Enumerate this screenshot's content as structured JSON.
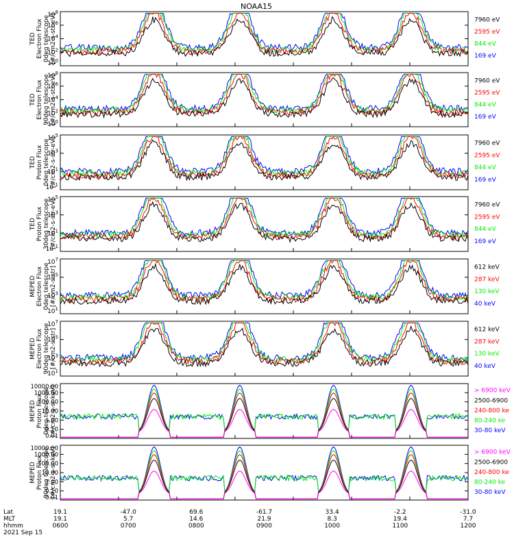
{
  "title": "NOAA15",
  "colors": {
    "blue": "#0000ff",
    "red": "#ff0000",
    "green": "#00ee00",
    "black": "#000000",
    "magenta": "#ff00ff"
  },
  "footer": {
    "row_labels": [
      "Lat",
      "MLT",
      "hhmm"
    ],
    "date": "2021 Sep 15",
    "lat": [
      "19.1",
      "-47.0",
      "69.6",
      "-61.7",
      "33.4",
      "-2.2",
      "-31.0"
    ],
    "mlt": [
      "19.1",
      "5.7",
      "14.6",
      "21.9",
      "8.3",
      "19.4",
      "7.7"
    ],
    "hhmm": [
      "0600",
      "0700",
      "0800",
      "0900",
      "1000",
      "1100",
      "1200"
    ]
  },
  "chart_data": [
    {
      "type": "line",
      "scale": "log",
      "ylim": [
        1,
        100000000
      ],
      "tick_labels": [
        "10^0",
        "10^2",
        "10^4",
        "10^6",
        "10^8"
      ],
      "ylabel": [
        "TED",
        "Electron Flux",
        "0deg telescope",
        "[#/cm2-s-str-eV]"
      ],
      "legend": [
        {
          "label": "7960 eV",
          "color": "black"
        },
        {
          "label": "2595 eV",
          "color": "red"
        },
        {
          "label": "844 eV",
          "color": "green"
        },
        {
          "label": "169 eV",
          "color": "blue"
        }
      ]
    },
    {
      "type": "line",
      "scale": "log",
      "ylim": [
        1,
        100000000
      ],
      "tick_labels": [
        "10^0",
        "10^2",
        "10^4",
        "10^6",
        "10^8"
      ],
      "ylabel": [
        "TED",
        "Electron Flux",
        "90deg telescope",
        "[#/cm2-s-str-eV]"
      ],
      "legend": [
        {
          "label": "7960 eV",
          "color": "black"
        },
        {
          "label": "2595 eV",
          "color": "red"
        },
        {
          "label": "844 eV",
          "color": "green"
        },
        {
          "label": "169 eV",
          "color": "blue"
        }
      ]
    },
    {
      "type": "line",
      "scale": "log",
      "ylim": [
        0.1,
        100000
      ],
      "tick_labels": [
        "10^-1",
        "10^1",
        "10^3",
        "10^5"
      ],
      "ylabel": [
        "TED",
        "Proton Flux",
        "0deg telescope",
        "[#/cm2-s-str-eV]"
      ],
      "legend": [
        {
          "label": "7960 eV",
          "color": "black"
        },
        {
          "label": "2595 eV",
          "color": "red"
        },
        {
          "label": "844 eV",
          "color": "green"
        },
        {
          "label": "169 eV",
          "color": "blue"
        }
      ]
    },
    {
      "type": "line",
      "scale": "log",
      "ylim": [
        0.1,
        100000
      ],
      "tick_labels": [
        "10^-1",
        "10^1",
        "10^3",
        "10^5"
      ],
      "ylabel": [
        "TED",
        "Proton Flux",
        "30deg telescope",
        "[#/cm2-s-str-eV]"
      ],
      "legend": [
        {
          "label": "7960 eV",
          "color": "black"
        },
        {
          "label": "2595 eV",
          "color": "red"
        },
        {
          "label": "844 eV",
          "color": "green"
        },
        {
          "label": "169 eV",
          "color": "blue"
        }
      ]
    },
    {
      "type": "line",
      "scale": "log",
      "ylim": [
        10,
        10000000
      ],
      "tick_labels": [
        "10^1",
        "10^3",
        "10^5",
        "10^7"
      ],
      "ylabel": [
        "MEPED",
        "Electron Flux",
        "0deg telescope",
        "[#/cm2-s-str]"
      ],
      "legend": [
        {
          "label": "612 keV",
          "color": "black"
        },
        {
          "label": "287 keV",
          "color": "red"
        },
        {
          "label": "130 keV",
          "color": "green"
        },
        {
          "label": "40 keV",
          "color": "blue"
        }
      ]
    },
    {
      "type": "line",
      "scale": "log",
      "ylim": [
        10,
        10000000
      ],
      "tick_labels": [
        "10^1",
        "10^3",
        "10^5",
        "10^7"
      ],
      "ylabel": [
        "MEPED",
        "Electron Flux",
        "90deg telescope",
        "[#/cm2-s-str]"
      ],
      "legend": [
        {
          "label": "612 keV",
          "color": "black"
        },
        {
          "label": "287 keV",
          "color": "red"
        },
        {
          "label": "130 keV",
          "color": "green"
        },
        {
          "label": "40 keV",
          "color": "blue"
        }
      ]
    },
    {
      "type": "line",
      "scale": "log",
      "ylim": [
        0.01,
        10000
      ],
      "tick_labels": [
        "0.01",
        "0.10",
        "1.00",
        "10.00",
        "100.00",
        "1000.00",
        "10000.00"
      ],
      "ylabel": [
        "MEPED",
        "Proton Flux",
        "0deg telescope",
        "[#/cm2-s-sr-keV]"
      ],
      "legend": [
        {
          "label": "> 6900 keV",
          "color": "magenta"
        },
        {
          "label": "2500-6900",
          "color": "black"
        },
        {
          "label": "240-800 ke",
          "color": "red"
        },
        {
          "label": "80-240 ke",
          "color": "green"
        },
        {
          "label": "30-80 keV",
          "color": "blue"
        }
      ]
    },
    {
      "type": "line",
      "scale": "log",
      "ylim": [
        0.01,
        10000
      ],
      "tick_labels": [
        "0.01",
        "0.10",
        "1.00",
        "10.00",
        "100.00",
        "1000.00",
        "10000.00"
      ],
      "ylabel": [
        "MEPED",
        "Proton Flux",
        "90deg telescope",
        "[#/cm2-s-sr-keV]"
      ],
      "legend": [
        {
          "label": "> 6900 keV",
          "color": "magenta"
        },
        {
          "label": "2500-6900",
          "color": "black"
        },
        {
          "label": "240-800 ke",
          "color": "red"
        },
        {
          "label": "80-240 ke",
          "color": "green"
        },
        {
          "label": "30-80 keV",
          "color": "blue"
        }
      ]
    }
  ]
}
